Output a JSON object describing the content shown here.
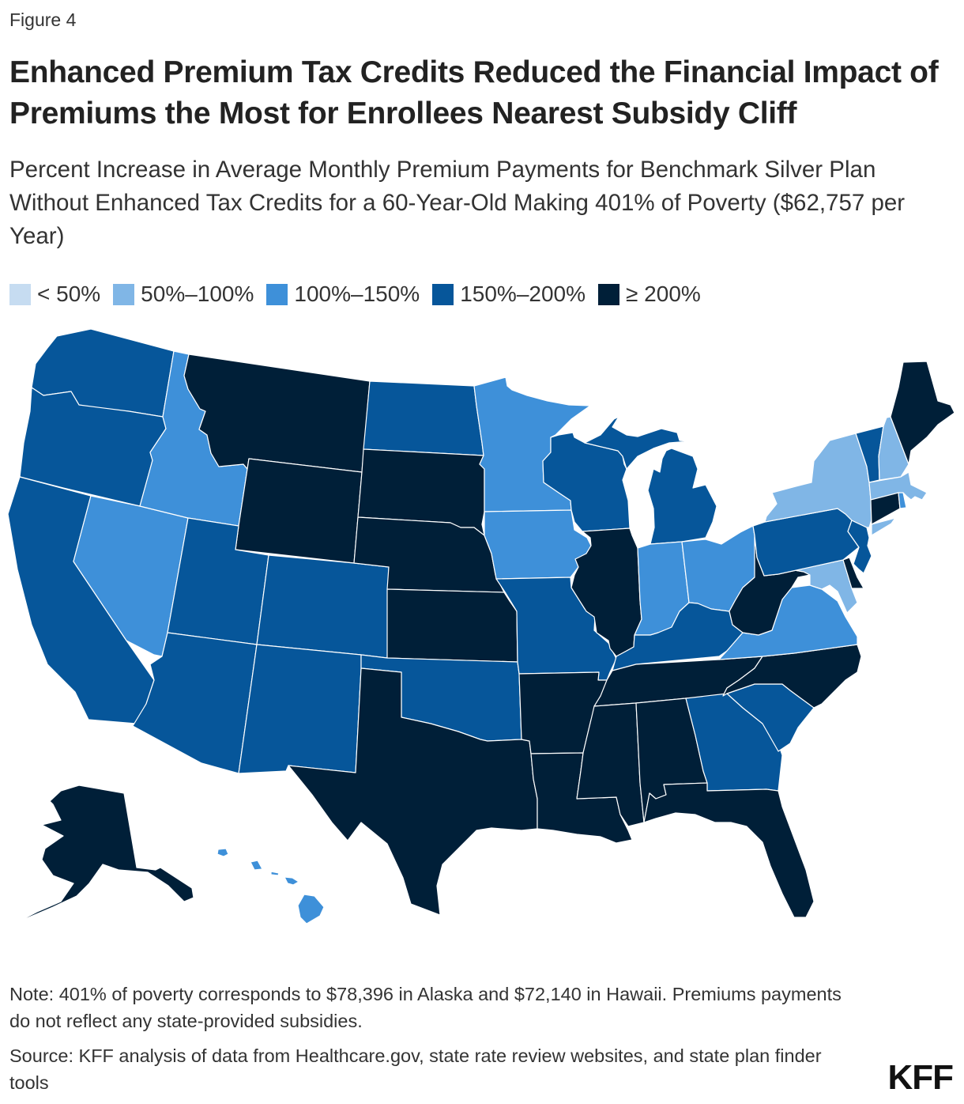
{
  "figure_label": "Figure 4",
  "title": "Enhanced Premium Tax Credits Reduced the Financial Impact of Premiums the Most for Enrollees Nearest Subsidy Cliff",
  "subtitle": "Percent Increase in Average Monthly Premium Payments for Benchmark Silver Plan Without Enhanced Tax Credits for a 60-Year-Old Making 401% of Poverty ($62,757 per Year)",
  "legend": [
    {
      "label": "< 50%",
      "color": "#c6dcf1"
    },
    {
      "label": "50%–100%",
      "color": "#80b6e6"
    },
    {
      "label": "100%–150%",
      "color": "#3e90d9"
    },
    {
      "label": "150%–200%",
      "color": "#06569a"
    },
    {
      "label": "≥ 200%",
      "color": "#001f38"
    }
  ],
  "map_data": {
    "type": "choropleth",
    "legend_position": "top-left",
    "states": {
      "WA": 3,
      "OR": 3,
      "CA": 3,
      "NV": 2,
      "ID": 2,
      "MT": 4,
      "WY": 4,
      "UT": 3,
      "CO": 3,
      "AZ": 3,
      "NM": 3,
      "ND": 3,
      "SD": 4,
      "NE": 4,
      "KS": 4,
      "OK": 3,
      "TX": 4,
      "MN": 2,
      "IA": 2,
      "MO": 3,
      "AR": 4,
      "LA": 4,
      "WI": 3,
      "IL": 4,
      "MI": 3,
      "IN": 2,
      "OH": 2,
      "KY": 3,
      "TN": 4,
      "MS": 4,
      "AL": 4,
      "GA": 3,
      "FL": 4,
      "SC": 3,
      "NC": 4,
      "VA": 2,
      "WV": 4,
      "MD": 1,
      "DE": 4,
      "PA": 3,
      "NJ": 3,
      "NY": 1,
      "VT": 3,
      "NH": 1,
      "ME": 4,
      "MA": 1,
      "CT": 4,
      "RI": 2,
      "AK": 4,
      "HI": 2
    }
  },
  "note": "Note: 401% of poverty corresponds to $78,396 in Alaska and $72,140 in Hawaii. Premiums payments do not reflect any state-provided subsidies.",
  "source": "Source: KFF analysis of data from Healthcare.gov, state rate review websites, and state plan finder tools",
  "logo": "KFF"
}
